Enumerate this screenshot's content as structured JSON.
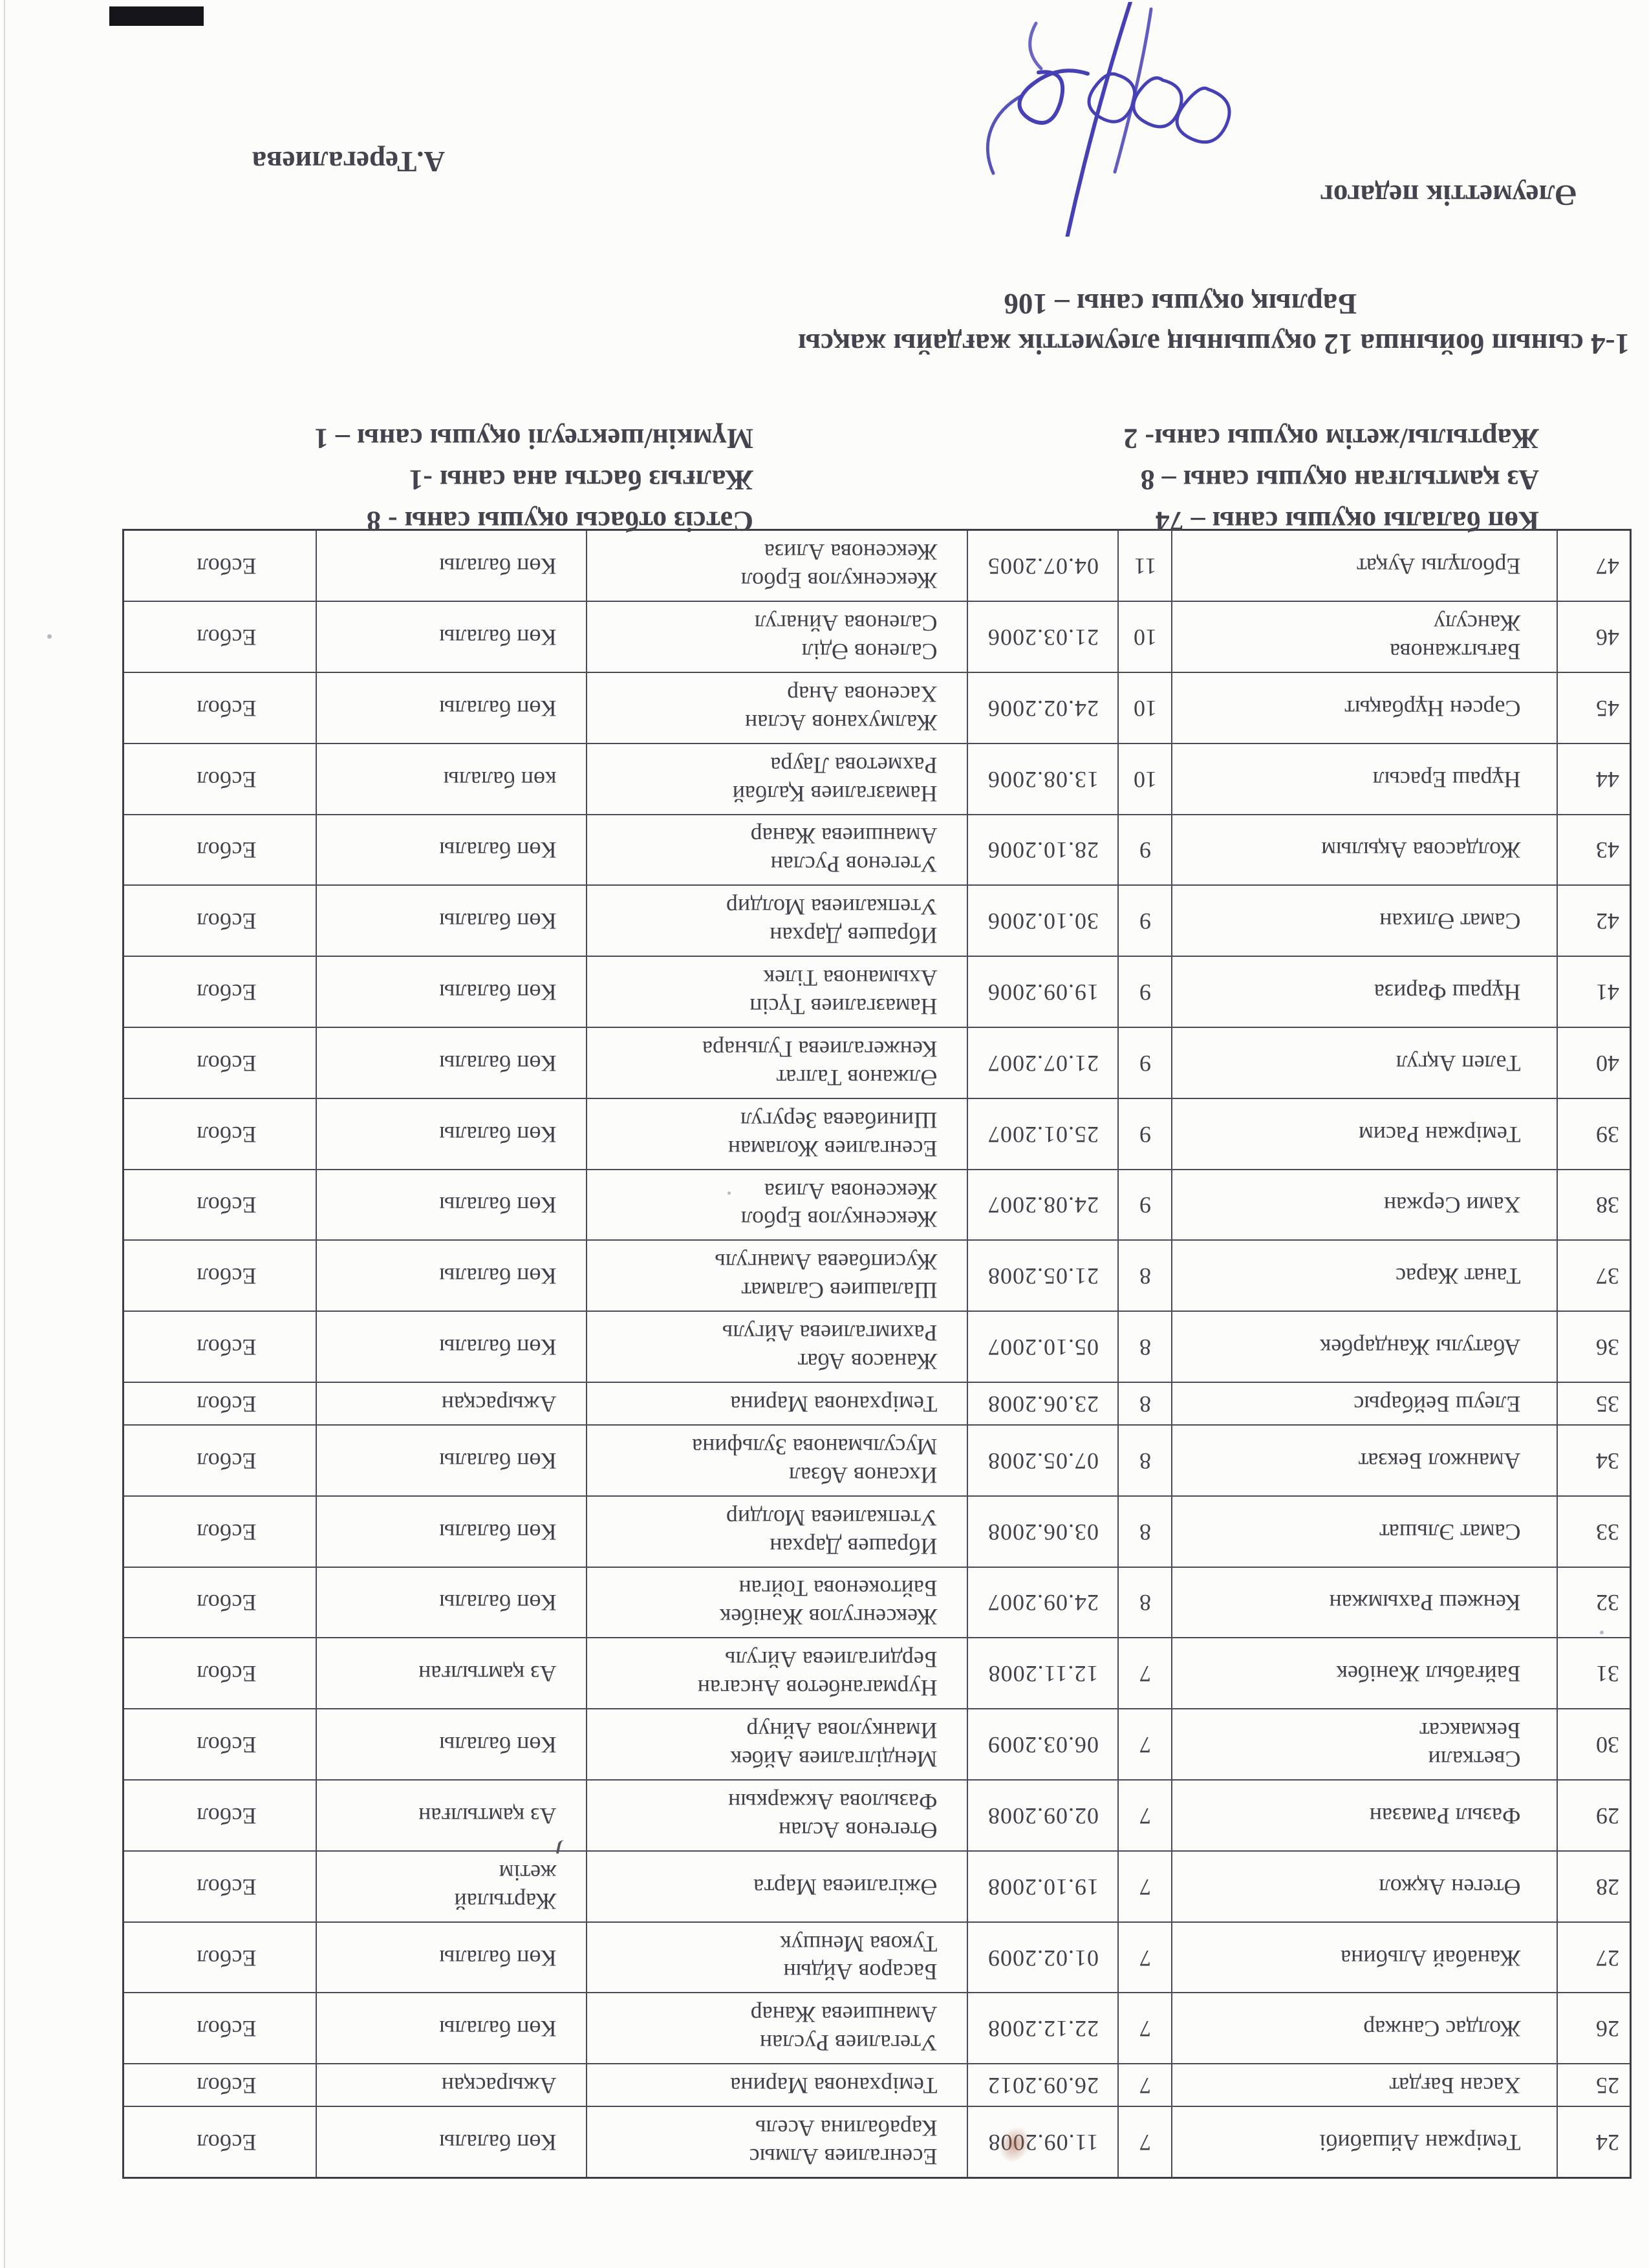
{
  "summary": {
    "line1": "1-4 сынып бойынша 12 оқушының әлеуметтік жағдайы жақсы",
    "line2": "Барлық оқушы саны – 106"
  },
  "stats": {
    "rows": [
      {
        "left": "Көп балалы оқушы саны – 74",
        "right": "Сәтсіз отбасы оқушы саны - 8"
      },
      {
        "left": "Аз қамтылған оқушы саны – 8",
        "right": "Жалғыз басты ана саны -1"
      },
      {
        "left": "Жартылы/жетім оқушы саны- 2",
        "right": "Мүмкін/шектеулі оқушы саны – 1"
      }
    ]
  },
  "signoff": {
    "role": "Әлеуметтік педагог",
    "name": "А.Терегалиева"
  },
  "table": {
    "rows": [
      {
        "num": 24,
        "name": [
          "Теміржан Айшабибі"
        ],
        "age": 7,
        "dob": "11.09.2008",
        "parents": [
          "Есенгалиев Алмыс",
          "Карабалина Асель"
        ],
        "category": [
          "Көп балалы"
        ],
        "village": "Есбол"
      },
      {
        "num": 25,
        "name": [
          "Хасан Бағдат"
        ],
        "age": 7,
        "dob": "26.09.2012",
        "parents": [
          "Темірханова Марина"
        ],
        "category": [
          "Ажырасқан"
        ],
        "village": "Есбол"
      },
      {
        "num": 26,
        "name": [
          "Жолдас Санжар"
        ],
        "age": 7,
        "dob": "22.12.2008",
        "parents": [
          "Утегалиев Руслан",
          "Аманшиева Жанар"
        ],
        "category": [
          "Көп балалы"
        ],
        "village": "Есбол"
      },
      {
        "num": 27,
        "name": [
          "Жанабай Альбина"
        ],
        "age": 7,
        "dob": "01.02.2009",
        "parents": [
          "Басаров Айдын",
          "Тукова Меншук"
        ],
        "category": [
          "Көп балалы"
        ],
        "village": "Есбол"
      },
      {
        "num": 28,
        "name": [
          "Өтеген Ақжол"
        ],
        "age": 7,
        "dob": "19.10.2008",
        "parents": [
          "Әжігалиева Марта"
        ],
        "category": [
          "Жартылай",
          "жетім"
        ],
        "village": "Есбол"
      },
      {
        "num": 29,
        "name": [
          "Фазыл Рамазан"
        ],
        "age": 7,
        "dob": "02.09.2008",
        "parents": [
          "Өтегенов Аслан",
          "Фазылова Акжаркын"
        ],
        "category": [
          "Аз қамтылған"
        ],
        "village": "Есбол"
      },
      {
        "num": 30,
        "name": [
          "Светкали",
          "Бекмаксат"
        ],
        "age": 7,
        "dob": "06.03.2009",
        "parents": [
          "Менділгалиев Айбек",
          "Иманкулова Айнур"
        ],
        "category": [
          "Көп балалы"
        ],
        "village": "Есбол"
      },
      {
        "num": 31,
        "name": [
          "Байғабыл Жәнібек"
        ],
        "age": 7,
        "dob": "12.11.2008",
        "parents": [
          "Нурмаганбетов Ансаган",
          "Бердигалиева Айгуль"
        ],
        "category": [
          "Аз қамтылған"
        ],
        "village": "Есбол"
      },
      {
        "num": 32,
        "name": [
          "Кенжеш Рахымжан"
        ],
        "age": 8,
        "dob": "24.09.2007",
        "parents": [
          "Жексенгулов Жәнібек",
          "Байтокенова Тойган"
        ],
        "category": [
          "Көп балалы"
        ],
        "village": "Есбол"
      },
      {
        "num": 33,
        "name": [
          "Самат Эльшат"
        ],
        "age": 8,
        "dob": "03.06.2008",
        "parents": [
          "Ибрашев Дархан",
          "Утепкалиева Молдир"
        ],
        "category": [
          "Көп балалы"
        ],
        "village": "Есбол"
      },
      {
        "num": 34,
        "name": [
          "Аманжол Бекзат"
        ],
        "age": 8,
        "dob": "07.05.2008",
        "parents": [
          "Ихсанов Абзал",
          "Мусульманова Зульфина"
        ],
        "category": [
          "Көп балалы"
        ],
        "village": "Есбол"
      },
      {
        "num": 35,
        "name": [
          "Елеуш Бейбарыс"
        ],
        "age": 8,
        "dob": "23.06.2008",
        "parents": [
          "Темірханова Марина"
        ],
        "category": [
          "Ажырасқан"
        ],
        "village": "Есбол"
      },
      {
        "num": 36,
        "name": [
          "Абатулы Жандарбек"
        ],
        "age": 8,
        "dob": "05.10.2007",
        "parents": [
          "Жанасов Абат",
          "Рахимгалиева Айгуль"
        ],
        "category": [
          "Көп балалы"
        ],
        "village": "Есбол"
      },
      {
        "num": 37,
        "name": [
          "Танат Жарас"
        ],
        "age": 8,
        "dob": "21.05.2008",
        "parents": [
          "Шалашиев Саламат",
          "Жусипбаева Амангуль"
        ],
        "category": [
          "Көп балалы"
        ],
        "village": "Есбол"
      },
      {
        "num": 38,
        "name": [
          "Хами Сержан"
        ],
        "age": 9,
        "dob": "24.08.2007",
        "parents": [
          "Жексенкулов Ербол",
          "Жексенова Ализа"
        ],
        "category": [
          "Көп балалы"
        ],
        "village": "Есбол"
      },
      {
        "num": 39,
        "name": [
          "Теміржан Расим"
        ],
        "age": 9,
        "dob": "25.01.2007",
        "parents": [
          "Есенгалиев Жоламан",
          "Шинибаева Зеругул"
        ],
        "category": [
          "Көп балалы"
        ],
        "village": "Есбол"
      },
      {
        "num": 40,
        "name": [
          "Тәлеп Ақгул"
        ],
        "age": 9,
        "dob": "21.07.2007",
        "parents": [
          "Әлжанов Талгат",
          "Кенжегалиева Гульнара"
        ],
        "category": [
          "Көп балалы"
        ],
        "village": "Есбол"
      },
      {
        "num": 41,
        "name": [
          "Нұраш Фариза"
        ],
        "age": 9,
        "dob": "19.09.2006",
        "parents": [
          "Намазгалиев Түсіп",
          "Ахыманова Тілек"
        ],
        "category": [
          "Көп балалы"
        ],
        "village": "Есбол"
      },
      {
        "num": 42,
        "name": [
          "Самат Әлихан"
        ],
        "age": 9,
        "dob": "30.10.2006",
        "parents": [
          "Ибрашев Дархан",
          "Утепкалиева Молдир"
        ],
        "category": [
          "Көп балалы"
        ],
        "village": "Есбол"
      },
      {
        "num": 43,
        "name": [
          "Жолдасова Ақылым"
        ],
        "age": 9,
        "dob": "28.10.2006",
        "parents": [
          "Утегенов Руслан",
          "Аманшиева Жанар"
        ],
        "category": [
          "Көп балалы"
        ],
        "village": "Есбол"
      },
      {
        "num": 44,
        "name": [
          "Нұраш Ерасыл"
        ],
        "age": 10,
        "dob": "13.08.2006",
        "parents": [
          "Намазгалиев Қалбай",
          "Рахметова Лаура"
        ],
        "category": [
          "көп балалы"
        ],
        "village": "Есбол"
      },
      {
        "num": 45,
        "name": [
          "Сәрсен Нұрбақыт"
        ],
        "age": 10,
        "dob": "24.02.2006",
        "parents": [
          "Жалмуханов Аслан",
          "Хасенова Анар"
        ],
        "category": [
          "Көп балалы"
        ],
        "village": "Есбол"
      },
      {
        "num": 46,
        "name": [
          "Бағытжанова",
          "Жансулу"
        ],
        "age": 10,
        "dob": "21.03.2006",
        "parents": [
          "Саленов Әділ",
          "Саленова Айнагул"
        ],
        "category": [
          "Көп балалы"
        ],
        "village": "Есбол"
      },
      {
        "num": 47,
        "name": [
          "Ерболұлы Ауқат"
        ],
        "age": 11,
        "dob": "04.07.2005",
        "parents": [
          "Жексенкулов Ербол",
          "Жексенова Ализа"
        ],
        "category": [
          "Көп балалы"
        ],
        "village": "Есбол"
      }
    ]
  },
  "colors": {
    "paper": "#fcfcfa",
    "ink": "#41414c",
    "table_line": "#4b4b57",
    "signature_ink": "#4540b5",
    "corner_mark": "#15151a"
  }
}
